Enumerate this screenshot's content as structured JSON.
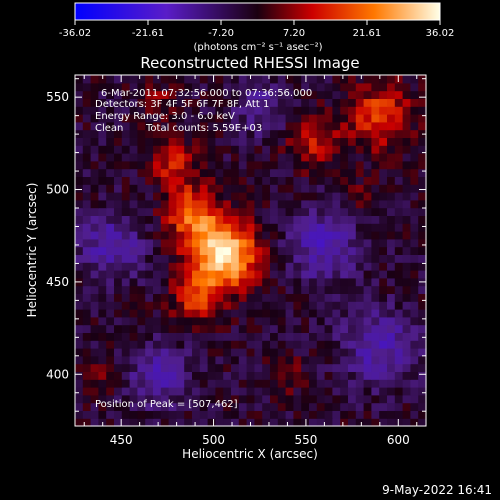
{
  "colorbar": {
    "ticks": [
      "-36.02",
      "-21.61",
      "-7.20",
      "7.20",
      "21.61",
      "36.02"
    ],
    "range": [
      -36.02,
      36.02
    ],
    "units_label": "(photons cm⁻² s⁻¹ asec⁻²)"
  },
  "plot": {
    "title": "Reconstructed RHESSI Image",
    "xlabel": "Heliocentric X (arcsec)",
    "ylabel": "Heliocentric Y (arcsec)",
    "annotations": {
      "time": "6-Mar-2011 07:32:56.000 to 07:36:56.000",
      "detectors": "Detectors: 3F 4F 5F 6F 7F 8F, Att 1",
      "energy": "Energy Range: 3.0 - 6.0 keV",
      "clean_label": "Clean",
      "counts": "Total counts: 5.59E+03",
      "peak": "Position of Peak = [507,462]"
    }
  },
  "footer": {
    "date": "9-May-2022 16:41"
  },
  "chart_data": {
    "type": "heatmap",
    "title": "Reconstructed RHESSI Image",
    "xlabel": "Heliocentric X (arcsec)",
    "ylabel": "Heliocentric Y (arcsec)",
    "xlim": [
      425,
      615
    ],
    "ylim": [
      372,
      562
    ],
    "x_ticks": [
      450,
      500,
      550,
      600
    ],
    "y_ticks": [
      400,
      450,
      500,
      550
    ],
    "colorbar_range": [
      -36.02,
      36.02
    ],
    "colorbar_ticks": [
      -36.02,
      -21.61,
      -7.2,
      7.2,
      21.61,
      36.02
    ],
    "grid": false,
    "peak_position": [
      507,
      462
    ],
    "sources": [
      {
        "x": 505,
        "y": 465,
        "sigma": 13,
        "amplitude": 36.02
      },
      {
        "x": 488,
        "y": 488,
        "sigma": 10,
        "amplitude": 20
      },
      {
        "x": 478,
        "y": 515,
        "sigma": 9,
        "amplitude": 14
      },
      {
        "x": 490,
        "y": 440,
        "sigma": 9,
        "amplitude": 14
      },
      {
        "x": 590,
        "y": 540,
        "sigma": 12,
        "amplitude": 18
      },
      {
        "x": 555,
        "y": 525,
        "sigma": 10,
        "amplitude": 12
      },
      {
        "x": 470,
        "y": 548,
        "sigma": 6,
        "amplitude": 8
      },
      {
        "x": 580,
        "y": 495,
        "sigma": 7,
        "amplitude": 8
      },
      {
        "x": 540,
        "y": 400,
        "sigma": 7,
        "amplitude": 7
      },
      {
        "x": 440,
        "y": 400,
        "sigma": 6,
        "amplitude": 6
      },
      {
        "x": 560,
        "y": 470,
        "sigma": 14,
        "amplitude": -14
      },
      {
        "x": 445,
        "y": 470,
        "sigma": 12,
        "amplitude": -14
      },
      {
        "x": 470,
        "y": 400,
        "sigma": 12,
        "amplitude": -12
      },
      {
        "x": 590,
        "y": 415,
        "sigma": 14,
        "amplitude": -14
      },
      {
        "x": 525,
        "y": 545,
        "sigma": 10,
        "amplitude": -10
      }
    ]
  }
}
